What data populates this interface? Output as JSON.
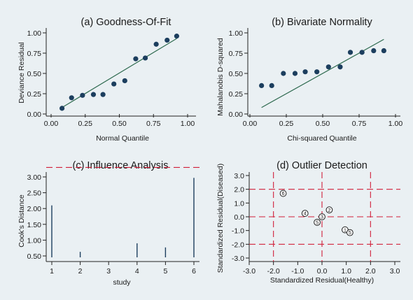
{
  "colors": {
    "background": "#eaf0f3",
    "point": "#1c3e5e",
    "fit_line": "#2e6a4f",
    "ref_line": "#d11f3a",
    "bar": "#1c3e5e",
    "open_marker": "#222222"
  },
  "chart_data": [
    {
      "id": "a",
      "type": "scatter",
      "title": "(a) Goodness-Of-Fit",
      "xlabel": "Normal Quantile",
      "ylabel": "Deviance Residual",
      "xlim": [
        0,
        1
      ],
      "ylim": [
        0,
        1
      ],
      "xticks": [
        "0.00",
        "0.25",
        "0.50",
        "0.75",
        "1.00"
      ],
      "yticks": [
        "0.00",
        "0.25",
        "0.50",
        "0.75",
        "1.00"
      ],
      "points": [
        [
          0.08,
          0.07
        ],
        [
          0.15,
          0.2
        ],
        [
          0.23,
          0.23
        ],
        [
          0.31,
          0.24
        ],
        [
          0.38,
          0.24
        ],
        [
          0.46,
          0.37
        ],
        [
          0.54,
          0.41
        ],
        [
          0.62,
          0.68
        ],
        [
          0.69,
          0.69
        ],
        [
          0.77,
          0.86
        ],
        [
          0.85,
          0.91
        ],
        [
          0.92,
          0.96
        ]
      ],
      "fit_line": [
        [
          0.08,
          0.08
        ],
        [
          0.92,
          0.93
        ]
      ]
    },
    {
      "id": "b",
      "type": "scatter",
      "title": "(b) Bivariate Normality",
      "xlabel": "Chi-squared Quantile",
      "ylabel": "Mahalanobis D-squared",
      "xlim": [
        0,
        1
      ],
      "ylim": [
        0,
        1
      ],
      "xticks": [
        "0.00",
        "0.25",
        "0.50",
        "0.75",
        "1.00"
      ],
      "yticks": [
        "0.00",
        "0.25",
        "0.50",
        "0.75",
        "1.00"
      ],
      "points": [
        [
          0.08,
          0.35
        ],
        [
          0.15,
          0.35
        ],
        [
          0.23,
          0.5
        ],
        [
          0.31,
          0.5
        ],
        [
          0.38,
          0.52
        ],
        [
          0.46,
          0.52
        ],
        [
          0.54,
          0.58
        ],
        [
          0.62,
          0.58
        ],
        [
          0.69,
          0.76
        ],
        [
          0.77,
          0.76
        ],
        [
          0.85,
          0.78
        ],
        [
          0.92,
          0.78
        ]
      ],
      "fit_line": [
        [
          0.08,
          0.08
        ],
        [
          0.92,
          0.92
        ]
      ]
    },
    {
      "id": "c",
      "type": "bar",
      "title": "(c) Influence Analysis",
      "xlabel": "study",
      "ylabel": "Cook's Distance",
      "xlim": [
        0.7,
        6.2
      ],
      "ylim": [
        0.3,
        3.1
      ],
      "categories": [
        "1",
        "2",
        "3",
        "4",
        "5",
        "6"
      ],
      "values": [
        2.1,
        0.63,
        null,
        0.9,
        0.77,
        2.97
      ],
      "baseline": 0.5,
      "xticks": [
        "1",
        "2",
        "3",
        "4",
        "5",
        "6"
      ],
      "yticks": [
        "0.50",
        "1.00",
        "1.50",
        "2.00",
        "2.50",
        "3.00"
      ],
      "ref_y": 3.3
    },
    {
      "id": "d",
      "type": "scatter",
      "title": "(d) Outlier Detection",
      "xlabel": "Standardized Residual(Healthy)",
      "ylabel": "Standardized Residual(Diseased)",
      "xlim": [
        -3.0,
        3.0
      ],
      "ylim": [
        -3.0,
        3.0
      ],
      "xticks": [
        "-3.0",
        "-2.0",
        "-1.0",
        "0.0",
        "1.0",
        "2.0",
        "3.0"
      ],
      "yticks": [
        "-3.0",
        "-2.0",
        "-1.0",
        "0.0",
        "1.0",
        "2.0",
        "3.0"
      ],
      "ref_x": [
        -2,
        0,
        2
      ],
      "ref_y": [
        -2,
        0,
        2
      ],
      "points": [
        {
          "x": -1.6,
          "y": 1.7,
          "label": "6"
        },
        {
          "x": -0.7,
          "y": 0.25,
          "label": "4"
        },
        {
          "x": -0.2,
          "y": -0.4,
          "label": "5"
        },
        {
          "x": 0.0,
          "y": 0.0,
          "label": "3"
        },
        {
          "x": 0.3,
          "y": 0.5,
          "label": "2"
        },
        {
          "x": 0.95,
          "y": -0.95,
          "label": "1"
        },
        {
          "x": 1.15,
          "y": -1.15,
          "label": "5"
        }
      ]
    }
  ]
}
